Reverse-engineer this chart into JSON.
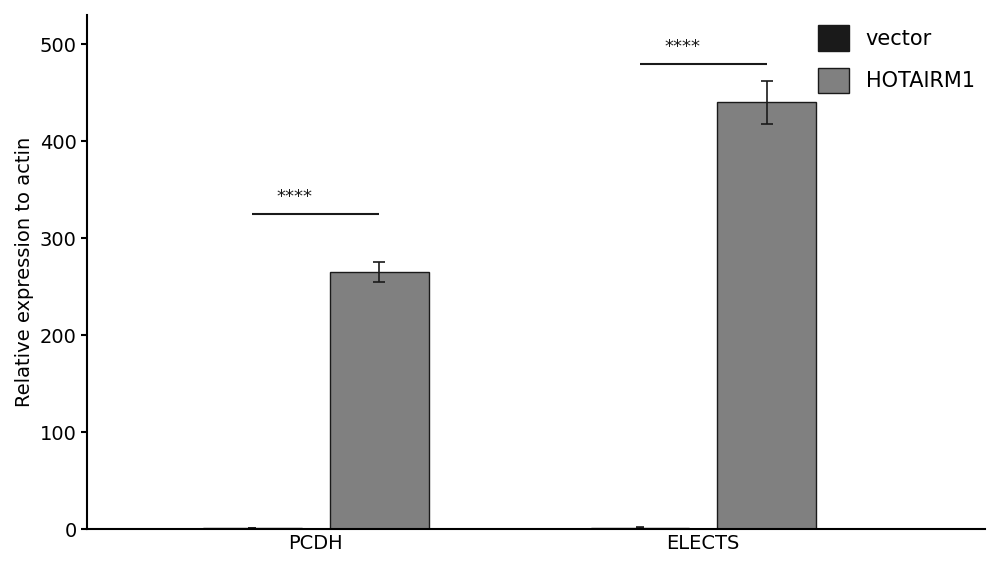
{
  "groups": [
    "PCDH",
    "ELECTS"
  ],
  "vector_values": [
    1.0,
    1.5
  ],
  "hotairm1_values": [
    265.0,
    440.0
  ],
  "vector_errors": [
    0.3,
    0.3
  ],
  "hotairm1_errors": [
    10.0,
    22.0
  ],
  "vector_color": "#1a1a1a",
  "hotairm1_color": "#808080",
  "bar_edgecolor": "#1a1a1a",
  "ylabel": "Relative expression to actin",
  "ylim": [
    0,
    530
  ],
  "yticks": [
    0,
    100,
    200,
    300,
    400,
    500
  ],
  "bar_width": 0.28,
  "group_centers": [
    0.65,
    1.75
  ],
  "significance": [
    "****",
    "****"
  ],
  "sig_bracket_y_pcdh": 325,
  "sig_bracket_y_elects": 480,
  "legend_labels": [
    "vector",
    "HOTAIRM1"
  ],
  "sig_line_color": "#1a1a1a",
  "background_color": "#ffffff",
  "ylabel_fontsize": 14,
  "tick_fontsize": 14,
  "legend_fontsize": 15,
  "sig_fontsize": 13,
  "xlim": [
    0.0,
    2.55
  ]
}
